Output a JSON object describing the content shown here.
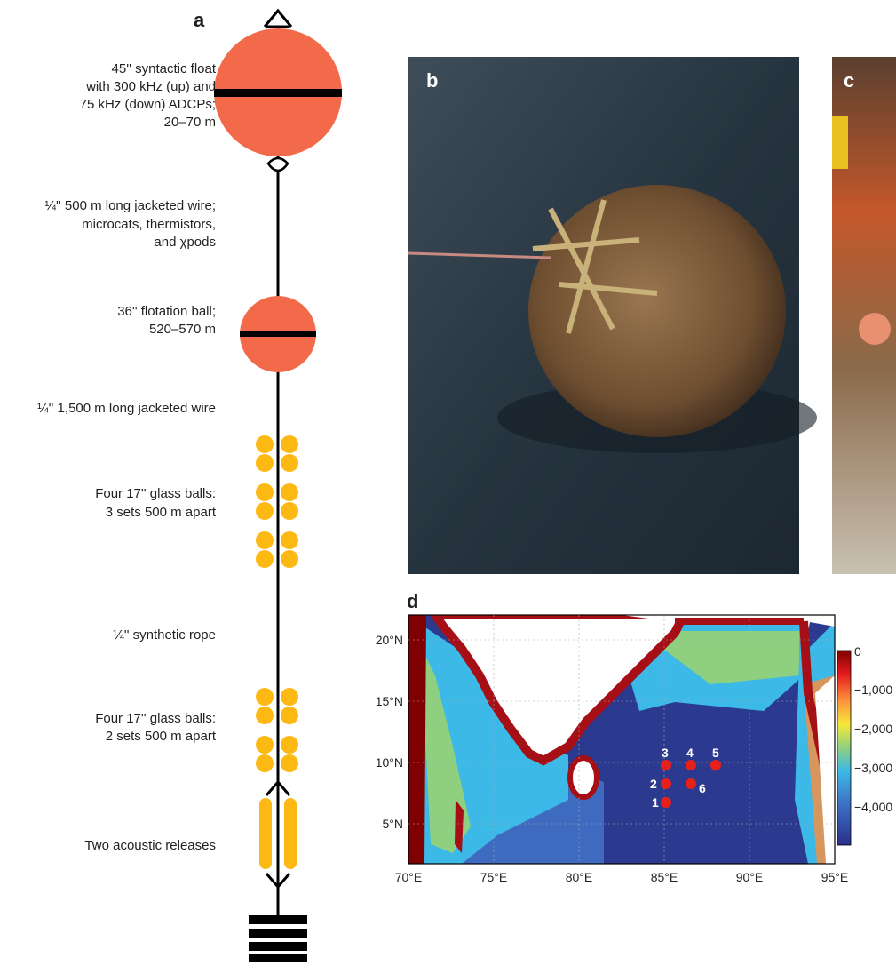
{
  "panels": {
    "a": "a",
    "b": "b",
    "c": "c",
    "d": "d"
  },
  "mooring": {
    "items": [
      {
        "lines": [
          "45'' syntactic float",
          "with 300 kHz (up) and",
          "75 kHz (down) ADCPs;",
          "20–70 m"
        ]
      },
      {
        "lines": [
          "¼'' 500 m long jacketed wire;",
          "microcats, thermistors,",
          "and χpods"
        ]
      },
      {
        "lines": [
          "36'' flotation ball;",
          "520–570 m"
        ]
      },
      {
        "lines": [
          "¼'' 1,500 m long jacketed wire"
        ]
      },
      {
        "lines": [
          "Four 17'' glass balls:",
          "3 sets 500 m apart"
        ]
      },
      {
        "lines": [
          "¼'' synthetic rope"
        ]
      },
      {
        "lines": [
          "Four 17'' glass balls:",
          "2 sets 500 m apart"
        ]
      },
      {
        "lines": [
          "Two acoustic releases"
        ]
      }
    ]
  },
  "map": {
    "lat_ticks": [
      "20°N",
      "15°N",
      "10°N",
      "5°N"
    ],
    "lon_ticks": [
      "70°E",
      "75°E",
      "80°E",
      "85°E",
      "90°E",
      "95°E"
    ],
    "colorbar_ticks": [
      "0",
      "−1,000",
      "−2,000",
      "−3,000",
      "−4,000"
    ],
    "stations": [
      "1",
      "2",
      "3",
      "4",
      "5",
      "6"
    ]
  }
}
